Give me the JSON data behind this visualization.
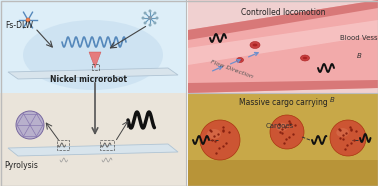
{
  "fig_width": 3.78,
  "fig_height": 1.86,
  "dpi": 100,
  "bg_color": "#f5f5f5",
  "left_top_bg": "#ddeef8",
  "left_bot_bg": "#eae4da",
  "glow_color": "#c8dff0",
  "platform_color": "#d8e4ec",
  "platform_edge": "#b0c4d4",
  "beam_color": "#e87070",
  "label_fsdlw": "Fs-DLW",
  "label_nickel": "Nickel microrobot",
  "label_pyrolysis": "Pyrolysis",
  "wave_blue": "#5588bb",
  "wave_dark": "#111111",
  "crystal_fill": "#b8b0cc",
  "crystal_edge": "#7868a0",
  "crystal_line": "#8878b0",
  "rt_bg": "#f0d0d0",
  "vessel_mid": "#f2aaaa",
  "vessel_edge": "#d87878",
  "vessel_highlight": "#fad0d0",
  "rbc_color": "#c84040",
  "rbc_edge": "#aa2222",
  "flow_arrow": "#7090cc",
  "rt_title": "Controlled locomotion",
  "rt_blood": "Blood Vessel",
  "rt_flow": "Flow Direction",
  "rb_bg": "#c8a848",
  "rb_sand": "#b89438",
  "cargo_fill": "#cc5533",
  "cargo_hl": "#dd7755",
  "cargo_dot": "#882211",
  "rb_title": "Massive cargo carrying",
  "rb_cargoes": "Cargoes",
  "divider": "#bbbbbb"
}
